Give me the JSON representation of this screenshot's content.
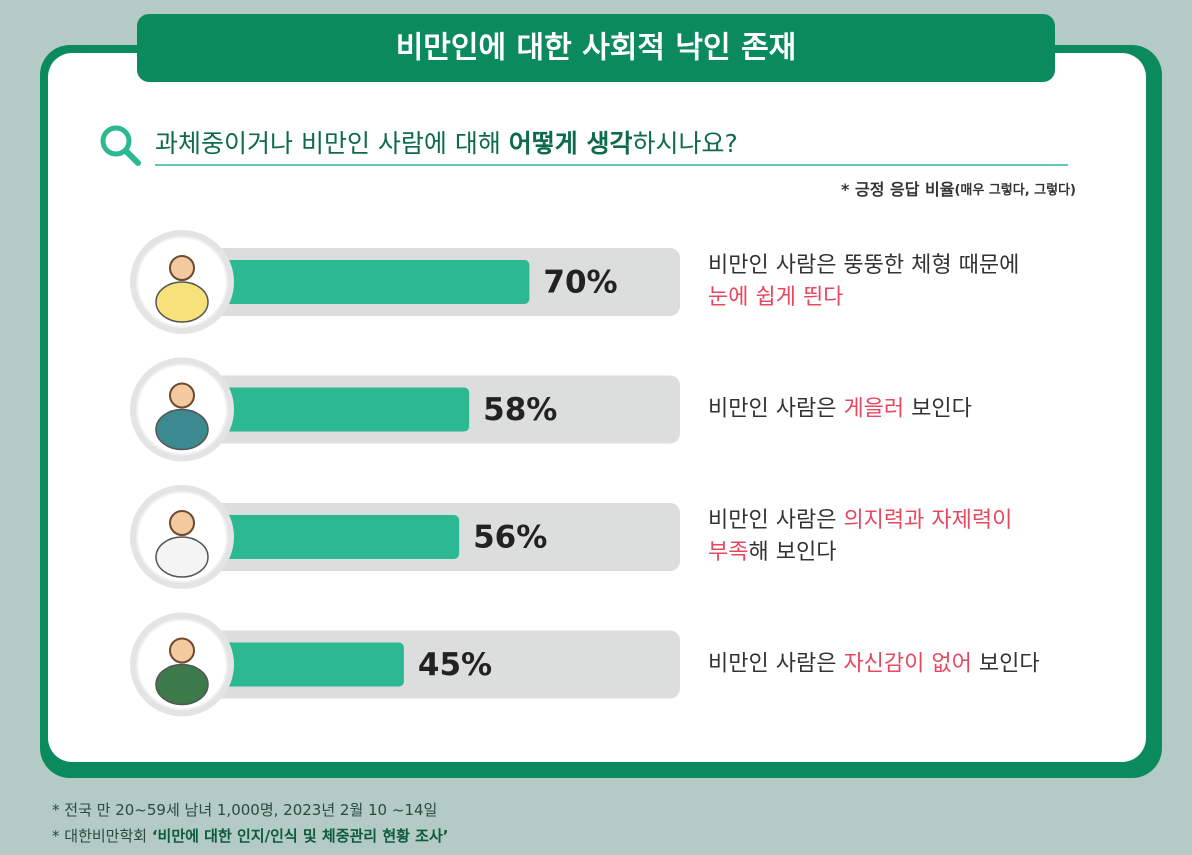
{
  "chart_data": {
    "type": "bar",
    "orientation": "horizontal",
    "title": "비만인에 대한 사회적 낙인 존재",
    "question": [
      {
        "text": "과체중이거나 비만인 사람에 대해 "
      },
      {
        "text": "어떻게 생각",
        "bold": true
      },
      {
        "text": "하시나요?"
      }
    ],
    "note": [
      {
        "text": "* 긍정 응답 비율"
      },
      {
        "text": "(매우 그렇다, 그렇다)",
        "small": true
      }
    ],
    "categories": [
      [
        [
          {
            "text": "비만인 사람은 뚱뚱한 체형 때문에"
          }
        ],
        [
          {
            "text": "눈에 쉽게 띈다",
            "highlight": true
          }
        ]
      ],
      [
        [
          {
            "text": "비만인 사람은 "
          },
          {
            "text": "게을러",
            "highlight": true
          },
          {
            "text": " 보인다"
          }
        ]
      ],
      [
        [
          {
            "text": "비만인 사람은 "
          },
          {
            "text": "의지력과 자제력이",
            "highlight": true
          }
        ],
        [
          {
            "text": "부족",
            "highlight": true
          },
          {
            "text": "해 보인다"
          }
        ]
      ],
      [
        [
          {
            "text": "비만인 사람은 "
          },
          {
            "text": "자신감이 없어",
            "highlight": true
          },
          {
            "text": " 보인다"
          }
        ]
      ]
    ],
    "values": [
      70,
      58,
      56,
      45
    ],
    "value_labels": [
      "70%",
      "58%",
      "56%",
      "45%"
    ],
    "xlim": [
      0,
      100
    ],
    "color": "#2db894",
    "track_color": "#dcdddd",
    "highlight_color": "#e8485f",
    "footnotes": [
      [
        {
          "text": "* 전국 만 20~59세 남녀 1,000명, 2023년 2월 10 ~14일"
        }
      ],
      [
        {
          "text": "* 대한비만학회 "
        },
        {
          "text": "‘비만에 대한 인지/인식 및 체중관리 현황 조사’",
          "bold": true
        }
      ]
    ]
  }
}
